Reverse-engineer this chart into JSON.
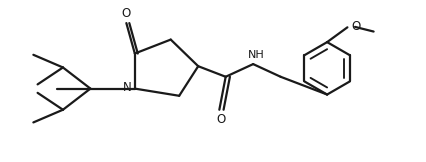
{
  "bg_color": "#ffffff",
  "line_color": "#1a1a1a",
  "line_width": 1.6,
  "figsize": [
    4.26,
    1.62
  ],
  "dpi": 100,
  "xlim": [
    0,
    10
  ],
  "ylim": [
    0,
    3.8
  ]
}
